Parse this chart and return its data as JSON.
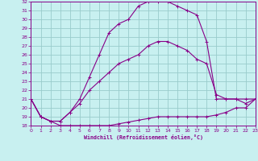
{
  "xlabel": "Windchill (Refroidissement éolien,°C)",
  "xlim": [
    0,
    23
  ],
  "ylim": [
    18,
    32
  ],
  "yticks": [
    18,
    19,
    20,
    21,
    22,
    23,
    24,
    25,
    26,
    27,
    28,
    29,
    30,
    31,
    32
  ],
  "xticks": [
    0,
    1,
    2,
    3,
    4,
    5,
    6,
    7,
    8,
    9,
    10,
    11,
    12,
    13,
    14,
    15,
    16,
    17,
    18,
    19,
    20,
    21,
    22,
    23
  ],
  "bg_color": "#c8f0f0",
  "grid_color": "#99cccc",
  "line_color": "#880088",
  "curve1_x": [
    0,
    1,
    2,
    3,
    4,
    5,
    6,
    7,
    8,
    9,
    10,
    11,
    12,
    13,
    14,
    15,
    16,
    17,
    18,
    19,
    20,
    21,
    22,
    23
  ],
  "curve1_y": [
    21,
    19,
    18.5,
    18,
    18,
    18,
    18,
    18,
    18,
    18.2,
    18.4,
    18.6,
    18.8,
    19,
    19,
    19,
    19,
    19,
    19,
    19.2,
    19.5,
    20,
    20,
    21
  ],
  "curve2_x": [
    0,
    1,
    2,
    3,
    4,
    5,
    6,
    7,
    8,
    9,
    10,
    11,
    12,
    13,
    14,
    15,
    16,
    17,
    18,
    19,
    20,
    21,
    22,
    23
  ],
  "curve2_y": [
    21,
    19,
    18.5,
    18.5,
    19.5,
    20.5,
    22,
    23,
    24,
    25,
    25.5,
    26,
    27,
    27.5,
    27.5,
    27,
    26.5,
    25.5,
    25,
    21.5,
    21,
    21,
    20.5,
    21
  ],
  "curve3_x": [
    0,
    1,
    2,
    3,
    4,
    5,
    6,
    7,
    8,
    9,
    10,
    11,
    12,
    13,
    14,
    15,
    16,
    17,
    18,
    19,
    20,
    21,
    22,
    23
  ],
  "curve3_y": [
    21,
    19,
    18.5,
    18.5,
    19.5,
    21,
    23.5,
    26,
    28.5,
    29.5,
    30,
    31.5,
    32,
    32,
    32,
    31.5,
    31,
    30.5,
    27.5,
    21,
    21,
    21,
    21,
    21
  ]
}
